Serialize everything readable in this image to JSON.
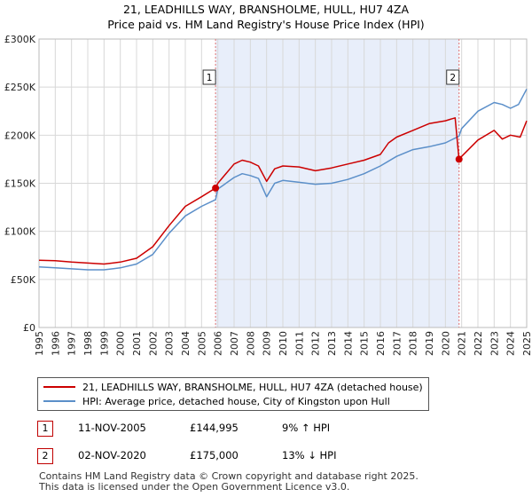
{
  "title_line1": "21, LEADHILLS WAY, BRANSHOLME, HULL, HU7 4ZA",
  "title_line2": "Price paid vs. HM Land Registry's House Price Index (HPI)",
  "colors": {
    "property": "#cc0000",
    "hpi": "#5b8fc9",
    "shade": "#e8eefa",
    "marker_line": "#e07070"
  },
  "legend": {
    "property_label": "21, LEADHILLS WAY, BRANSHOLME, HULL, HU7 4ZA (detached house)",
    "hpi_label": "HPI: Average price, detached house, City of Kingston upon Hull"
  },
  "transactions": [
    {
      "id": "1",
      "date": "11-NOV-2005",
      "price": "£144,995",
      "hpi_change": "9% ↑ HPI"
    },
    {
      "id": "2",
      "date": "02-NOV-2020",
      "price": "£175,000",
      "hpi_change": "13% ↓ HPI"
    }
  ],
  "footer": {
    "line1": "Contains HM Land Registry data © Crown copyright and database right 2025.",
    "line2": "This data is licensed under the Open Government Licence v3.0."
  },
  "chart_data": {
    "type": "line",
    "title": "Price paid vs. HM Land Registry's House Price Index (HPI)",
    "xlabel": "",
    "ylabel": "",
    "xlim": [
      1995,
      2025
    ],
    "ylim": [
      0,
      300000
    ],
    "y_ticks": [
      0,
      50000,
      100000,
      150000,
      200000,
      250000,
      300000
    ],
    "y_tick_labels": [
      "£0",
      "£50K",
      "£100K",
      "£150K",
      "£200K",
      "£250K",
      "£300K"
    ],
    "x_ticks": [
      1995,
      1996,
      1997,
      1998,
      1999,
      2000,
      2001,
      2002,
      2003,
      2004,
      2005,
      2006,
      2007,
      2008,
      2009,
      2010,
      2011,
      2012,
      2013,
      2014,
      2015,
      2016,
      2017,
      2018,
      2019,
      2020,
      2021,
      2022,
      2023,
      2024,
      2025
    ],
    "x_tick_labels": [
      "1995",
      "1996",
      "1997",
      "1998",
      "1999",
      "2000",
      "2001",
      "2002",
      "2003",
      "2004",
      "2005",
      "2006",
      "2007",
      "2008",
      "2009",
      "2010",
      "2011",
      "2012",
      "2013",
      "2014",
      "2015",
      "2016",
      "2017",
      "2018",
      "2019",
      "2020",
      "2021",
      "2022",
      "2023",
      "2024",
      "2025"
    ],
    "grid": true,
    "shaded_range": [
      2005.86,
      2020.84
    ],
    "markers": [
      {
        "label": "1",
        "x": 2005.86,
        "y": 144995
      },
      {
        "label": "2",
        "x": 2020.84,
        "y": 175000
      }
    ],
    "series": [
      {
        "name": "21, LEADHILLS WAY, BRANSHOLME, HULL, HU7 4ZA (detached house)",
        "x": [
          1995,
          1996,
          1997,
          1998,
          1999,
          2000,
          2001,
          2002,
          2003,
          2004,
          2005,
          2005.86,
          2006,
          2007,
          2007.5,
          2008,
          2008.5,
          2009,
          2009.5,
          2010,
          2011,
          2012,
          2013,
          2014,
          2015,
          2016,
          2016.5,
          2017,
          2018,
          2019,
          2020,
          2020.6,
          2020.84,
          2021,
          2022,
          2023,
          2023.5,
          2024,
          2024.6,
          2025
        ],
        "values": [
          70000,
          69500,
          68000,
          67000,
          66000,
          68000,
          72000,
          84000,
          106000,
          126000,
          136000,
          144995,
          150000,
          170000,
          174000,
          172000,
          168000,
          152000,
          165000,
          168000,
          167000,
          163000,
          166000,
          170000,
          174000,
          180000,
          192000,
          198000,
          205000,
          212000,
          215000,
          218000,
          175000,
          178000,
          195000,
          205000,
          196000,
          200000,
          198000,
          215000
        ]
      },
      {
        "name": "HPI: Average price, detached house, City of Kingston upon Hull",
        "x": [
          1995,
          1996,
          1997,
          1998,
          1999,
          2000,
          2001,
          2002,
          2003,
          2004,
          2005,
          2005.86,
          2006,
          2007,
          2007.5,
          2008,
          2008.5,
          2009,
          2009.5,
          2010,
          2011,
          2012,
          2013,
          2014,
          2015,
          2016,
          2017,
          2018,
          2019,
          2020,
          2020.84,
          2021,
          2022,
          2023,
          2023.5,
          2024,
          2024.5,
          2025
        ],
        "values": [
          63000,
          62000,
          61000,
          60000,
          60000,
          62000,
          66000,
          76000,
          98000,
          116000,
          126000,
          133000,
          144000,
          156000,
          160000,
          158000,
          155000,
          136000,
          150000,
          153000,
          151000,
          149000,
          150000,
          154000,
          160000,
          168000,
          178000,
          185000,
          188000,
          192000,
          199000,
          207000,
          225000,
          234000,
          232000,
          228000,
          232000,
          248000
        ]
      }
    ]
  }
}
